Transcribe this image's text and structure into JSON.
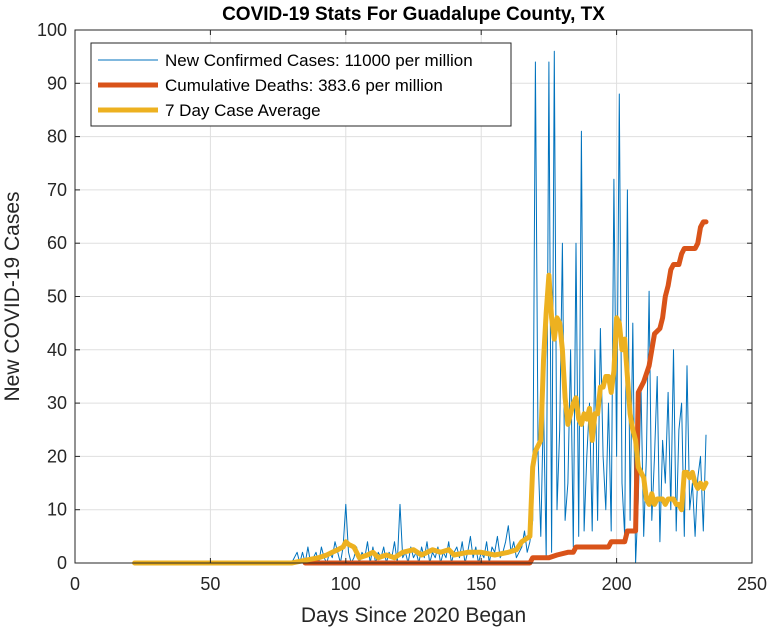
{
  "chart_data": {
    "type": "line",
    "title": "COVID-19 Stats For Guadalupe County, TX",
    "xlabel": "Days Since 2020 Began",
    "ylabel": "New COVID-19 Cases",
    "xlim": [
      0,
      250
    ],
    "ylim": [
      0,
      100
    ],
    "xticks": [
      0,
      50,
      100,
      150,
      200,
      250
    ],
    "yticks": [
      0,
      10,
      20,
      30,
      40,
      50,
      60,
      70,
      80,
      90,
      100
    ],
    "grid": true,
    "legend_position": "top-left",
    "series": [
      {
        "name": "New Confirmed Cases: 11000 per million",
        "color": "#0072BD",
        "linewidth": "thin",
        "x": [
          22,
          80,
          82,
          83,
          84,
          85,
          86,
          87,
          88,
          89,
          90,
          91,
          92,
          93,
          94,
          95,
          96,
          97,
          98,
          99,
          100,
          101,
          102,
          103,
          104,
          105,
          106,
          107,
          108,
          109,
          110,
          111,
          112,
          113,
          114,
          115,
          116,
          117,
          118,
          119,
          120,
          121,
          122,
          123,
          124,
          125,
          126,
          127,
          128,
          129,
          130,
          131,
          132,
          133,
          134,
          135,
          136,
          137,
          138,
          139,
          140,
          141,
          142,
          143,
          144,
          145,
          146,
          147,
          148,
          149,
          150,
          151,
          152,
          153,
          154,
          155,
          156,
          157,
          158,
          159,
          160,
          161,
          162,
          163,
          164,
          165,
          166,
          167,
          168,
          169,
          170,
          171,
          172,
          173,
          174,
          175,
          176,
          177,
          178,
          179,
          180,
          181,
          182,
          183,
          184,
          185,
          186,
          187,
          188,
          189,
          190,
          191,
          192,
          193,
          194,
          195,
          196,
          197,
          198,
          199,
          200,
          201,
          202,
          203,
          204,
          205,
          206,
          207,
          208,
          209,
          210,
          211,
          212,
          213,
          214,
          215,
          216,
          217,
          218,
          219,
          220,
          221,
          222,
          223,
          224,
          225,
          226,
          227,
          228,
          229,
          230,
          231,
          232,
          233
        ],
        "values": [
          0,
          0,
          2,
          0,
          2,
          0,
          3,
          0,
          1,
          2,
          0,
          3,
          1,
          0,
          2,
          1,
          4,
          2,
          0,
          3,
          11,
          2,
          0,
          1,
          3,
          0,
          2,
          1,
          4,
          0,
          3,
          0,
          2,
          1,
          3,
          0,
          2,
          1,
          4,
          0,
          11,
          1,
          2,
          0,
          3,
          1,
          2,
          0,
          3,
          1,
          4,
          0,
          2,
          1,
          3,
          0,
          2,
          1,
          4,
          0,
          2,
          3,
          1,
          4,
          0,
          2,
          5,
          1,
          3,
          0,
          2,
          1,
          4,
          0,
          3,
          2,
          5,
          1,
          2,
          4,
          7,
          2,
          4,
          1,
          2,
          3,
          6,
          2,
          4,
          8,
          94,
          20,
          5,
          30,
          1,
          94,
          2,
          96,
          10,
          25,
          60,
          8,
          15,
          40,
          3,
          60,
          5,
          81,
          6,
          20,
          30,
          6,
          40,
          8,
          44,
          20,
          10,
          30,
          6,
          72,
          20,
          88,
          15,
          5,
          70,
          8,
          45,
          0,
          12,
          33,
          5,
          20,
          51,
          8,
          20,
          35,
          4,
          23,
          15,
          32,
          10,
          40,
          6,
          25,
          30,
          5,
          37,
          10,
          15,
          5,
          16,
          20,
          6,
          24
        ]
      },
      {
        "name": "Cumulative Deaths: 383.6 per million",
        "color": "#D95319",
        "linewidth": "thick",
        "x": [
          85,
          168,
          169,
          175,
          178,
          182,
          184,
          185,
          190,
          197,
          198,
          203,
          204,
          205,
          206,
          207,
          208,
          210,
          212,
          214,
          216,
          217,
          218,
          219,
          220,
          221,
          222,
          223,
          224,
          225,
          226,
          227,
          228,
          229,
          230,
          231,
          232,
          233
        ],
        "values": [
          0,
          0,
          1,
          1,
          1.5,
          2,
          2,
          3,
          3,
          3,
          4,
          4,
          6,
          6,
          6,
          6,
          32,
          34,
          37,
          43,
          44,
          46,
          50,
          52,
          55,
          56,
          56,
          56,
          58,
          59,
          59,
          59,
          59,
          59,
          60,
          63,
          64,
          64
        ]
      },
      {
        "name": "7 Day Case Average",
        "color": "#EDB120",
        "linewidth": "thick",
        "x": [
          22,
          80,
          85,
          90,
          93,
          95,
          97,
          99,
          100,
          101,
          103,
          105,
          108,
          110,
          112,
          115,
          118,
          121,
          125,
          128,
          132,
          135,
          138,
          140,
          145,
          150,
          155,
          160,
          163,
          165,
          168,
          169,
          170,
          171,
          172,
          173,
          174,
          175,
          176,
          177,
          178,
          179,
          180,
          181,
          182,
          183,
          184,
          185,
          186,
          187,
          188,
          189,
          190,
          191,
          192,
          193,
          194,
          195,
          196,
          197,
          198,
          199,
          200,
          201,
          202,
          203,
          204,
          205,
          206,
          207,
          208,
          209,
          210,
          211,
          212,
          213,
          214,
          215,
          216,
          217,
          218,
          219,
          220,
          221,
          222,
          223,
          224,
          225,
          226,
          227,
          228,
          229,
          230,
          231,
          232,
          233
        ],
        "values": [
          0,
          0,
          0.5,
          1,
          1.5,
          2,
          2.5,
          3,
          4,
          3.5,
          3,
          1,
          1.5,
          2,
          1,
          1.5,
          1,
          2,
          2.5,
          1.5,
          2.5,
          2,
          2.5,
          1.5,
          2,
          2,
          1.5,
          2,
          2.5,
          4,
          5,
          18,
          21,
          22,
          23,
          38,
          47,
          54,
          46,
          42,
          46,
          45,
          40,
          31,
          26,
          28,
          30,
          31,
          27,
          26,
          28,
          27,
          29,
          23,
          28,
          28,
          33,
          33,
          35,
          35,
          32,
          36,
          46,
          45,
          40,
          42,
          35,
          28,
          25,
          23,
          18,
          17,
          16,
          12,
          11,
          13,
          11,
          12,
          12,
          12,
          11,
          12,
          12,
          12,
          11,
          11,
          10,
          17,
          17,
          16,
          17,
          15,
          14,
          15,
          14,
          15
        ]
      }
    ]
  }
}
